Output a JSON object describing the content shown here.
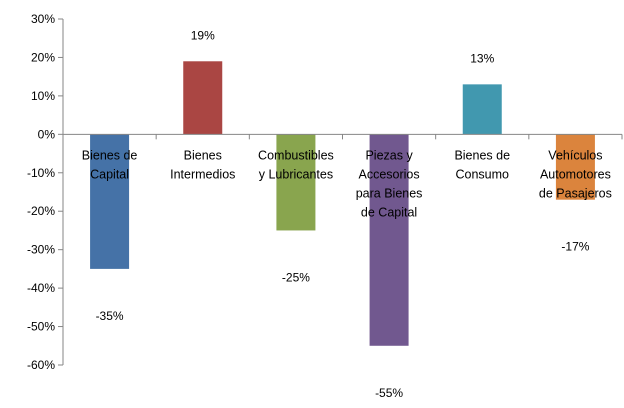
{
  "chart_data": {
    "type": "bar",
    "title": "",
    "xlabel": "",
    "ylabel": "",
    "ylim": [
      -60,
      30
    ],
    "yticks": [
      "30%",
      "20%",
      "10%",
      "0%",
      "-10%",
      "-20%",
      "-30%",
      "-40%",
      "-50%",
      "-60%"
    ],
    "ytick_values": [
      30,
      20,
      10,
      0,
      -10,
      -20,
      -30,
      -40,
      -50,
      -60
    ],
    "grid": false,
    "legend": "none",
    "categories": [
      [
        "Bienes de",
        "Capital"
      ],
      [
        "Bienes",
        "Intermedios"
      ],
      [
        "Combustibles",
        "y Lubricantes"
      ],
      [
        "Piezas y",
        "Accesorios",
        "para Bienes",
        "de Capital"
      ],
      [
        "Bienes de",
        "Consumo"
      ],
      [
        "Vehículos",
        "Automotores",
        "de Pasajeros"
      ]
    ],
    "values": [
      -35,
      19,
      -25,
      -55,
      13,
      -17
    ],
    "data_labels": [
      "-35%",
      "19%",
      "-25%",
      "-55%",
      "13%",
      "-17%"
    ],
    "colors": [
      "#4572A7",
      "#AA4643",
      "#89A54E",
      "#71588F",
      "#4198AF",
      "#DB843D"
    ]
  }
}
